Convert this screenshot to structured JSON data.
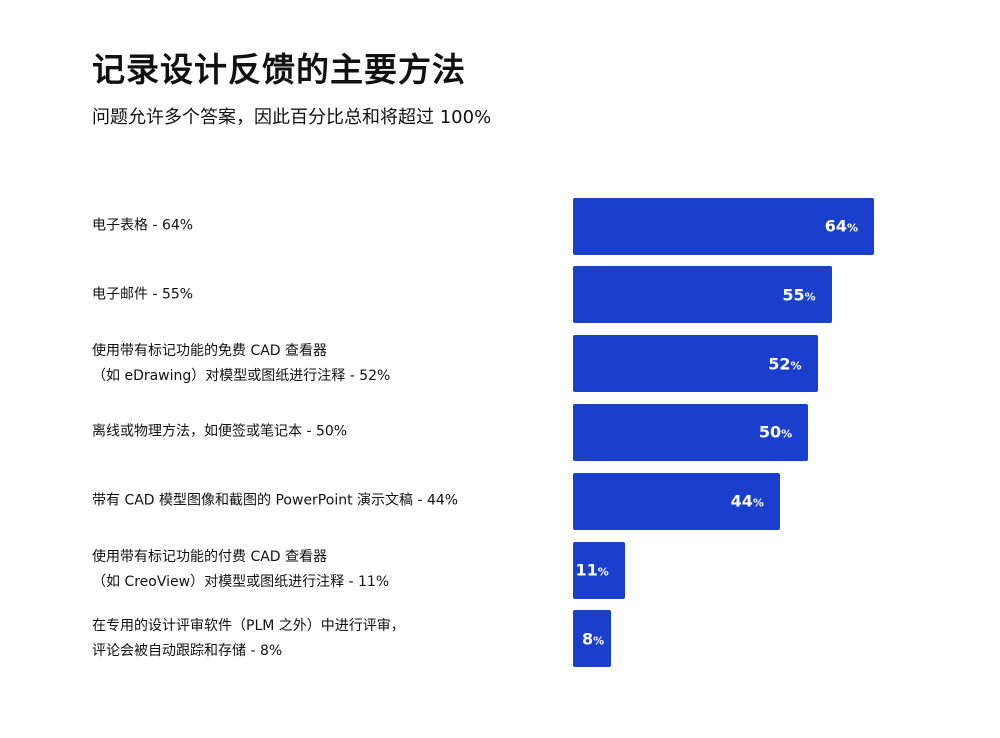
{
  "title": "记录设计反馈的主要方法",
  "subtitle": "问题允许多个答案，因此百分比总和将超过 100%",
  "colors": {
    "bar": "#1a3fcc",
    "bar_text": "#ffffff",
    "label_text": "#111111"
  },
  "chart_data": {
    "type": "bar",
    "orientation": "horizontal",
    "categories": [
      [
        "电子表格 - 64%"
      ],
      [
        "电子邮件 - 55%"
      ],
      [
        "使用带有标记功能的免费 CAD 查看器",
        "（如 eDrawing）对模型或图纸进行注释 - 52%"
      ],
      [
        "离线或物理方法，如便签或笔记本 - 50%"
      ],
      [
        "带有 CAD 模型图像和截图的 PowerPoint 演示文稿 - 44%"
      ],
      [
        "使用带有标记功能的付费 CAD 查看器",
        "（如 CreoView）对模型或图纸进行注释 - 11%"
      ],
      [
        "在专用的设计评审软件（PLM 之外）中进行评审，",
        "评论会被自动跟踪和存储 - 8%"
      ]
    ],
    "values": [
      64,
      55,
      52,
      50,
      44,
      11,
      8
    ],
    "value_labels": [
      "64",
      "55",
      "52",
      "50",
      "44",
      "11",
      "8"
    ],
    "unit": "%",
    "xlim": [
      0,
      64
    ],
    "grid": false,
    "legend": "none"
  }
}
